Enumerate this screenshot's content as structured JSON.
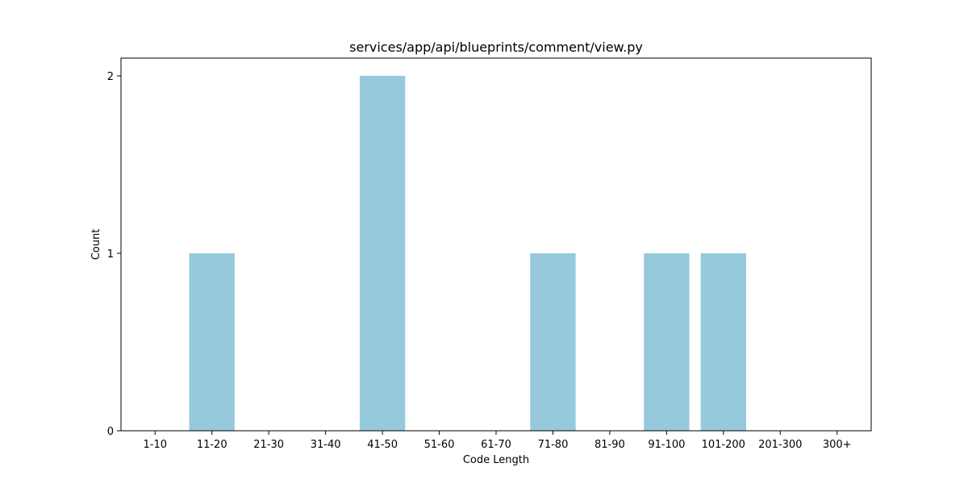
{
  "chart_data": {
    "type": "bar",
    "title": "services/app/api/blueprints/comment/view.py",
    "xlabel": "Code Length",
    "ylabel": "Count",
    "categories": [
      "1-10",
      "11-20",
      "21-30",
      "31-40",
      "41-50",
      "51-60",
      "61-70",
      "71-80",
      "81-90",
      "91-100",
      "101-200",
      "201-300",
      "300+"
    ],
    "values": [
      0,
      1,
      0,
      0,
      2,
      0,
      0,
      1,
      0,
      1,
      1,
      0,
      0
    ],
    "yticks": [
      "0",
      "1",
      "2"
    ],
    "ylim": [
      0,
      2.1
    ],
    "grid": false,
    "legend": false,
    "colors": {
      "bar": "#96c9dc",
      "axis": "#000000",
      "background": "#ffffff"
    }
  }
}
